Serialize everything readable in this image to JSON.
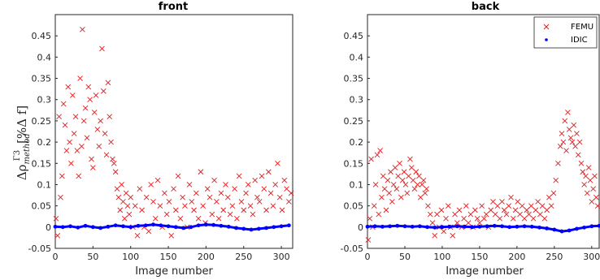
{
  "figure": {
    "ylabel_main": "Δρ",
    "ylabel_sub": "method",
    "ylabel_sup": "Γ3",
    "ylabel_bracket": "[%Δ f]"
  },
  "chart_data": [
    {
      "type": "scatter",
      "title": "front",
      "xlabel": "Image number",
      "ylabel": "",
      "xlim": [
        0,
        315
      ],
      "ylim": [
        -0.05,
        0.5
      ],
      "xticks": [
        0,
        50,
        100,
        150,
        200,
        250,
        300
      ],
      "yticks": [
        -0.05,
        0,
        0.05,
        0.1,
        0.15,
        0.2,
        0.25,
        0.3,
        0.35,
        0.4,
        0.45
      ],
      "grid": false,
      "legend": null,
      "series": [
        {
          "name": "FEMU",
          "marker": "x",
          "color": "#e41a1c",
          "x": [
            1,
            3,
            5,
            7,
            9,
            11,
            13,
            15,
            17,
            19,
            21,
            23,
            25,
            27,
            29,
            31,
            33,
            35,
            36,
            38,
            40,
            42,
            44,
            46,
            48,
            50,
            52,
            54,
            56,
            58,
            60,
            62,
            64,
            66,
            68,
            70,
            72,
            74,
            76,
            78,
            80,
            82,
            84,
            86,
            88,
            90,
            92,
            94,
            96,
            98,
            100,
            103,
            106,
            109,
            112,
            115,
            118,
            121,
            124,
            127,
            130,
            133,
            136,
            139,
            142,
            145,
            148,
            151,
            154,
            157,
            160,
            163,
            166,
            169,
            172,
            175,
            178,
            181,
            184,
            187,
            190,
            193,
            196,
            199,
            202,
            205,
            208,
            211,
            214,
            217,
            220,
            223,
            226,
            229,
            232,
            235,
            238,
            241,
            244,
            247,
            250,
            253,
            256,
            259,
            262,
            265,
            268,
            271,
            274,
            277,
            280,
            283,
            286,
            289,
            292,
            295,
            298,
            301,
            304,
            307,
            310,
            313
          ],
          "y": [
            0.02,
            -0.02,
            0.26,
            0.07,
            0.12,
            0.29,
            0.24,
            0.18,
            0.33,
            0.2,
            0.15,
            0.31,
            0.22,
            0.26,
            0.18,
            0.12,
            0.35,
            0.19,
            0.465,
            0.25,
            0.28,
            0.21,
            0.33,
            0.3,
            0.16,
            0.14,
            0.27,
            0.31,
            0.23,
            0.19,
            0.25,
            0.42,
            0.32,
            0.22,
            0.17,
            0.34,
            0.26,
            0.2,
            0.16,
            0.15,
            0.13,
            0.09,
            0.07,
            0.04,
            0.1,
            0.06,
            0.02,
            0.08,
            0.05,
            0.03,
            0.07,
            0.0,
            0.05,
            -0.02,
            0.09,
            0.04,
            0.0,
            0.07,
            -0.01,
            0.1,
            0.06,
            0.02,
            0.11,
            0.05,
            0.0,
            0.08,
            0.03,
            0.06,
            -0.02,
            0.09,
            0.04,
            0.12,
            0.02,
            0.07,
            0.05,
            0.0,
            0.1,
            0.06,
            0.04,
            0.08,
            0.02,
            0.13,
            0.05,
            0.01,
            0.09,
            0.07,
            0.03,
            0.11,
            0.06,
            0.02,
            0.08,
            0.04,
            0.1,
            0.07,
            0.03,
            0.05,
            0.09,
            0.02,
            0.12,
            0.06,
            0.04,
            0.08,
            0.1,
            0.05,
            0.03,
            0.11,
            0.07,
            0.06,
            0.12,
            0.09,
            0.04,
            0.13,
            0.08,
            0.05,
            0.1,
            0.15,
            0.07,
            0.04,
            0.11,
            0.09,
            0.06,
            0.08
          ]
        },
        {
          "name": "IDIC",
          "marker": "dot",
          "color": "#0000ff",
          "x": [
            0,
            10,
            20,
            30,
            40,
            50,
            60,
            70,
            80,
            90,
            100,
            110,
            120,
            130,
            140,
            150,
            160,
            170,
            180,
            190,
            200,
            210,
            220,
            230,
            240,
            250,
            260,
            270,
            280,
            290,
            300,
            310
          ],
          "y": [
            0.001,
            0.0,
            0.002,
            -0.001,
            0.003,
            0.0,
            -0.002,
            0.001,
            0.004,
            0.002,
            0.0,
            0.003,
            0.004,
            0.006,
            0.004,
            0.002,
            0.0,
            -0.002,
            0.0,
            0.004,
            0.006,
            0.005,
            0.003,
            0.001,
            -0.002,
            -0.004,
            -0.006,
            -0.004,
            -0.002,
            0.0,
            0.002,
            0.004
          ]
        }
      ]
    },
    {
      "type": "scatter",
      "title": "back",
      "xlabel": "Image number",
      "ylabel": "",
      "xlim": [
        0,
        310
      ],
      "ylim": [
        -0.05,
        0.5
      ],
      "xticks": [
        0,
        50,
        100,
        150,
        200,
        250,
        300
      ],
      "yticks": [
        -0.05,
        0,
        0.05,
        0.1,
        0.15,
        0.2,
        0.25,
        0.3,
        0.35,
        0.4,
        0.45
      ],
      "grid": false,
      "legend": "top-right",
      "series": [
        {
          "name": "FEMU",
          "marker": "x",
          "color": "#e41a1c",
          "x": [
            1,
            3,
            5,
            7,
            9,
            11,
            13,
            15,
            17,
            19,
            21,
            23,
            25,
            27,
            29,
            31,
            33,
            35,
            37,
            39,
            41,
            43,
            45,
            47,
            49,
            51,
            53,
            55,
            57,
            59,
            61,
            63,
            65,
            67,
            69,
            71,
            73,
            75,
            77,
            79,
            81,
            84,
            87,
            90,
            93,
            96,
            99,
            102,
            105,
            108,
            111,
            114,
            117,
            120,
            123,
            126,
            129,
            132,
            135,
            138,
            141,
            144,
            147,
            150,
            153,
            156,
            159,
            162,
            165,
            168,
            171,
            174,
            177,
            180,
            183,
            186,
            189,
            192,
            195,
            198,
            201,
            204,
            207,
            210,
            213,
            216,
            219,
            222,
            225,
            228,
            231,
            234,
            237,
            240,
            243,
            246,
            249,
            252,
            255,
            258,
            260,
            262,
            264,
            266,
            268,
            270,
            272,
            274,
            276,
            278,
            280,
            282,
            284,
            286,
            288,
            290,
            292,
            294,
            296,
            298,
            300,
            302,
            304,
            306,
            308
          ],
          "y": [
            -0.03,
            0.02,
            0.16,
            0.0,
            0.05,
            0.1,
            0.17,
            0.03,
            0.18,
            0.07,
            0.12,
            0.09,
            0.04,
            0.11,
            0.08,
            0.13,
            0.06,
            0.1,
            0.14,
            0.09,
            0.12,
            0.15,
            0.07,
            0.11,
            0.13,
            0.1,
            0.08,
            0.12,
            0.16,
            0.14,
            0.11,
            0.09,
            0.13,
            0.1,
            0.12,
            0.07,
            0.1,
            0.11,
            0.08,
            0.09,
            0.05,
            0.03,
            0.01,
            -0.02,
            0.03,
            0.0,
            0.04,
            -0.01,
            0.02,
            0.05,
            0.0,
            -0.02,
            0.03,
            0.01,
            0.04,
            0.0,
            0.02,
            0.05,
            0.01,
            0.03,
            0.0,
            0.04,
            0.02,
            0.01,
            0.05,
            0.02,
            0.03,
            0.0,
            0.04,
            0.06,
            0.03,
            0.05,
            0.02,
            0.06,
            0.04,
            0.03,
            0.05,
            0.07,
            0.02,
            0.04,
            0.06,
            0.03,
            0.05,
            0.02,
            0.04,
            0.03,
            0.05,
            0.02,
            0.04,
            0.06,
            0.03,
            0.05,
            0.02,
            0.04,
            0.07,
            0.05,
            0.08,
            0.11,
            0.15,
            0.19,
            0.22,
            0.2,
            0.25,
            0.18,
            0.27,
            0.23,
            0.21,
            0.2,
            0.24,
            0.19,
            0.22,
            0.17,
            0.2,
            0.15,
            0.13,
            0.1,
            0.12,
            0.08,
            0.14,
            0.11,
            0.06,
            0.09,
            0.12,
            0.07,
            0.05
          ]
        },
        {
          "name": "IDIC",
          "marker": "dot",
          "color": "#0000ff",
          "x": [
            0,
            10,
            20,
            30,
            40,
            50,
            60,
            70,
            80,
            90,
            100,
            110,
            120,
            130,
            140,
            150,
            160,
            170,
            180,
            190,
            200,
            210,
            220,
            230,
            240,
            250,
            260,
            270,
            280,
            290,
            300,
            310
          ],
          "y": [
            0.001,
            0.002,
            0.001,
            0.002,
            0.003,
            0.002,
            0.001,
            0.002,
            0.0,
            -0.001,
            0.0,
            0.001,
            0.002,
            0.001,
            0.0,
            0.001,
            0.002,
            0.003,
            0.002,
            0.0,
            0.001,
            0.002,
            0.001,
            -0.001,
            -0.003,
            -0.006,
            -0.01,
            -0.008,
            -0.004,
            -0.001,
            0.002,
            0.003
          ]
        }
      ]
    }
  ]
}
